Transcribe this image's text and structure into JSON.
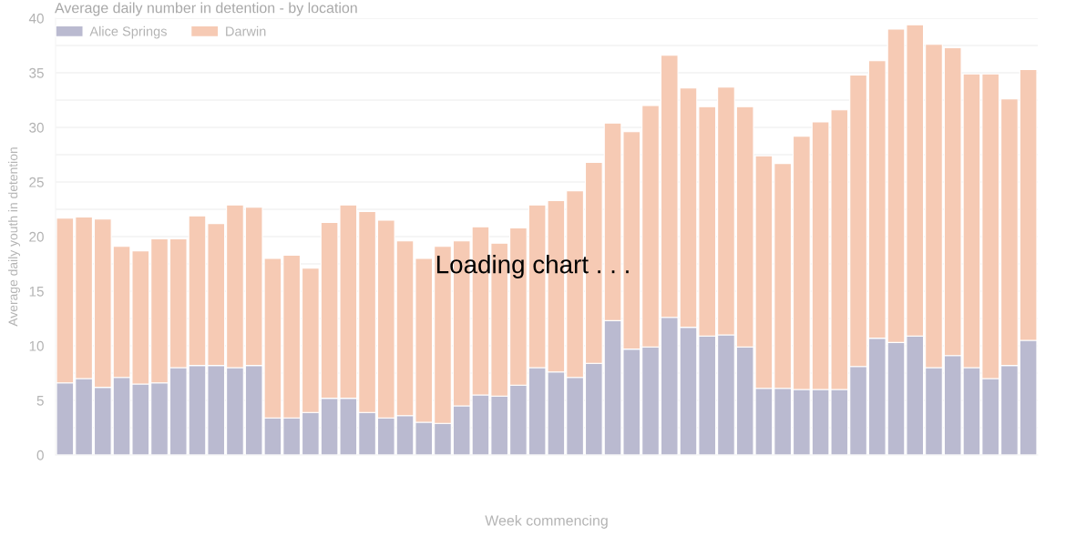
{
  "chart_data": {
    "type": "bar",
    "title": "Average daily number in detention - by location",
    "xlabel": "Week commencing",
    "ylabel": "Average daily youth in detention",
    "annotations": [
      "Loading chart . . ."
    ],
    "categories": [
      null,
      null,
      null,
      null,
      null,
      null,
      null,
      null,
      null,
      null,
      null,
      null,
      null,
      null,
      null,
      null,
      null,
      null,
      null,
      null,
      null,
      null,
      null,
      null,
      null,
      null,
      null,
      null,
      null,
      null,
      null,
      null,
      null,
      null,
      null,
      null,
      null,
      null,
      null,
      null,
      null,
      null,
      null,
      null,
      null,
      null,
      null,
      null,
      null,
      null,
      null,
      null
    ],
    "stacked": true,
    "series": [
      {
        "name": "Alice Springs",
        "color": "#babad0",
        "values": [
          6.6,
          7.0,
          6.2,
          7.1,
          6.5,
          6.6,
          8.0,
          8.2,
          8.2,
          8.0,
          8.2,
          3.4,
          3.4,
          3.9,
          5.2,
          5.2,
          3.9,
          3.4,
          3.6,
          3.0,
          2.9,
          4.5,
          5.5,
          5.4,
          6.4,
          8.0,
          7.6,
          7.1,
          8.4,
          12.3,
          9.7,
          9.9,
          12.6,
          11.7,
          10.9,
          11.0,
          9.9,
          6.1,
          6.1,
          6.0,
          6.0,
          6.0,
          8.1,
          10.7,
          10.3,
          10.9,
          8.0,
          9.1,
          8.0,
          7.0,
          8.2,
          10.5
        ]
      },
      {
        "name": "Darwin",
        "color": "#f6cab4",
        "values": [
          15.1,
          14.8,
          15.4,
          12.0,
          12.2,
          13.2,
          11.8,
          13.7,
          13.0,
          14.9,
          14.5,
          14.6,
          14.9,
          13.2,
          16.1,
          17.7,
          18.4,
          18.1,
          16.0,
          15.0,
          16.2,
          15.1,
          15.4,
          14.0,
          14.4,
          14.9,
          15.7,
          17.1,
          18.4,
          18.1,
          19.9,
          22.1,
          24.0,
          21.9,
          21.0,
          22.7,
          22.0,
          21.3,
          20.6,
          23.2,
          24.5,
          25.6,
          26.7,
          25.4,
          28.7,
          28.5,
          29.6,
          28.2,
          26.9,
          27.9,
          24.4,
          24.8
        ]
      }
    ],
    "ylim": [
      0,
      40
    ],
    "yticks": [
      0,
      {
        "value": 2.5,
        "label": null
      },
      5,
      {
        "value": 7.5,
        "label": null
      },
      10,
      {
        "value": 12.5,
        "label": null
      },
      15,
      {
        "value": 17.5,
        "label": null
      },
      20,
      {
        "value": 22.5,
        "label": null
      },
      25,
      {
        "value": 27.5,
        "label": null
      },
      30,
      {
        "value": 32.5,
        "label": null
      },
      35,
      {
        "value": 37.5,
        "label": null
      },
      40
    ],
    "grid": "y",
    "legend": "top left"
  }
}
